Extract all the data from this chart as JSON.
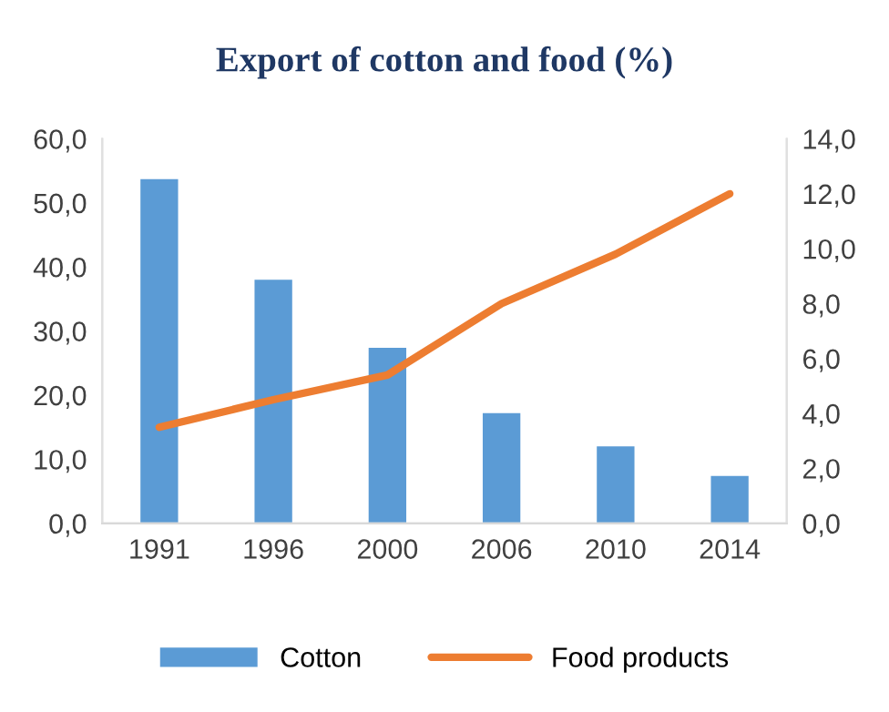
{
  "chart_data": {
    "type": "bar",
    "title": "Export of cotton and food (%)",
    "categories": [
      "1991",
      "1996",
      "2000",
      "2006",
      "2010",
      "2014"
    ],
    "series": [
      {
        "name": "Cotton",
        "color": "#5b9bd5",
        "values": [
          53.7,
          38.0,
          27.4,
          17.2,
          12.0,
          7.4
        ]
      },
      {
        "name": "Food products",
        "type": "line",
        "axis": "y2",
        "color": "#ed7d31",
        "values": [
          3.5,
          4.5,
          5.4,
          8.0,
          9.8,
          12.0
        ]
      }
    ],
    "ylim": [
      0,
      60
    ],
    "yticks": [
      {
        "value": 0,
        "label": "0,0"
      },
      {
        "value": 10,
        "label": "10,0"
      },
      {
        "value": 20,
        "label": "20,0"
      },
      {
        "value": 30,
        "label": "30,0"
      },
      {
        "value": 40,
        "label": "40,0"
      },
      {
        "value": 50,
        "label": "50,0"
      },
      {
        "value": 60,
        "label": "60,0"
      }
    ],
    "y2lim": [
      0,
      14
    ],
    "y2ticks": [
      {
        "value": 0,
        "label": "0,0"
      },
      {
        "value": 2,
        "label": "2,0"
      },
      {
        "value": 4,
        "label": "4,0"
      },
      {
        "value": 6,
        "label": "6,0"
      },
      {
        "value": 8,
        "label": "8,0"
      },
      {
        "value": 10,
        "label": "10,0"
      },
      {
        "value": 12,
        "label": "12,0"
      },
      {
        "value": 14,
        "label": "14,0"
      }
    ],
    "legend": "bottom",
    "grid": false
  }
}
